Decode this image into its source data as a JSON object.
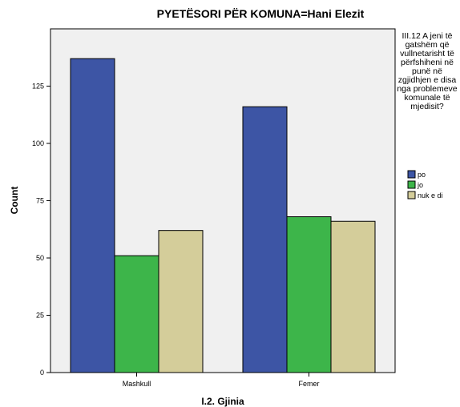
{
  "chart_data": {
    "type": "bar",
    "title": "PYETËSORI PËR KOMUNA=Hani Elezit",
    "xlabel": "I.2. Gjinia",
    "ylabel": "Count",
    "categories": [
      "Mashkull",
      "Femer"
    ],
    "ylim": [
      0,
      150
    ],
    "yticks": [
      0,
      25,
      50,
      75,
      100,
      125
    ],
    "grid": false,
    "legend_position": "right",
    "legend_title": "III.12 A jeni të gatshëm që vullnetarisht të përfshiheni në punë në zgjidhjen e disa nga problemeve komunale të mjedisit?",
    "series": [
      {
        "name": "po",
        "values": [
          137,
          116
        ],
        "color": "#3d55a5"
      },
      {
        "name": "jo",
        "values": [
          51,
          68
        ],
        "color": "#3db54a"
      },
      {
        "name": "nuk e di",
        "values": [
          62,
          66
        ],
        "color": "#d4cd9a"
      }
    ]
  }
}
